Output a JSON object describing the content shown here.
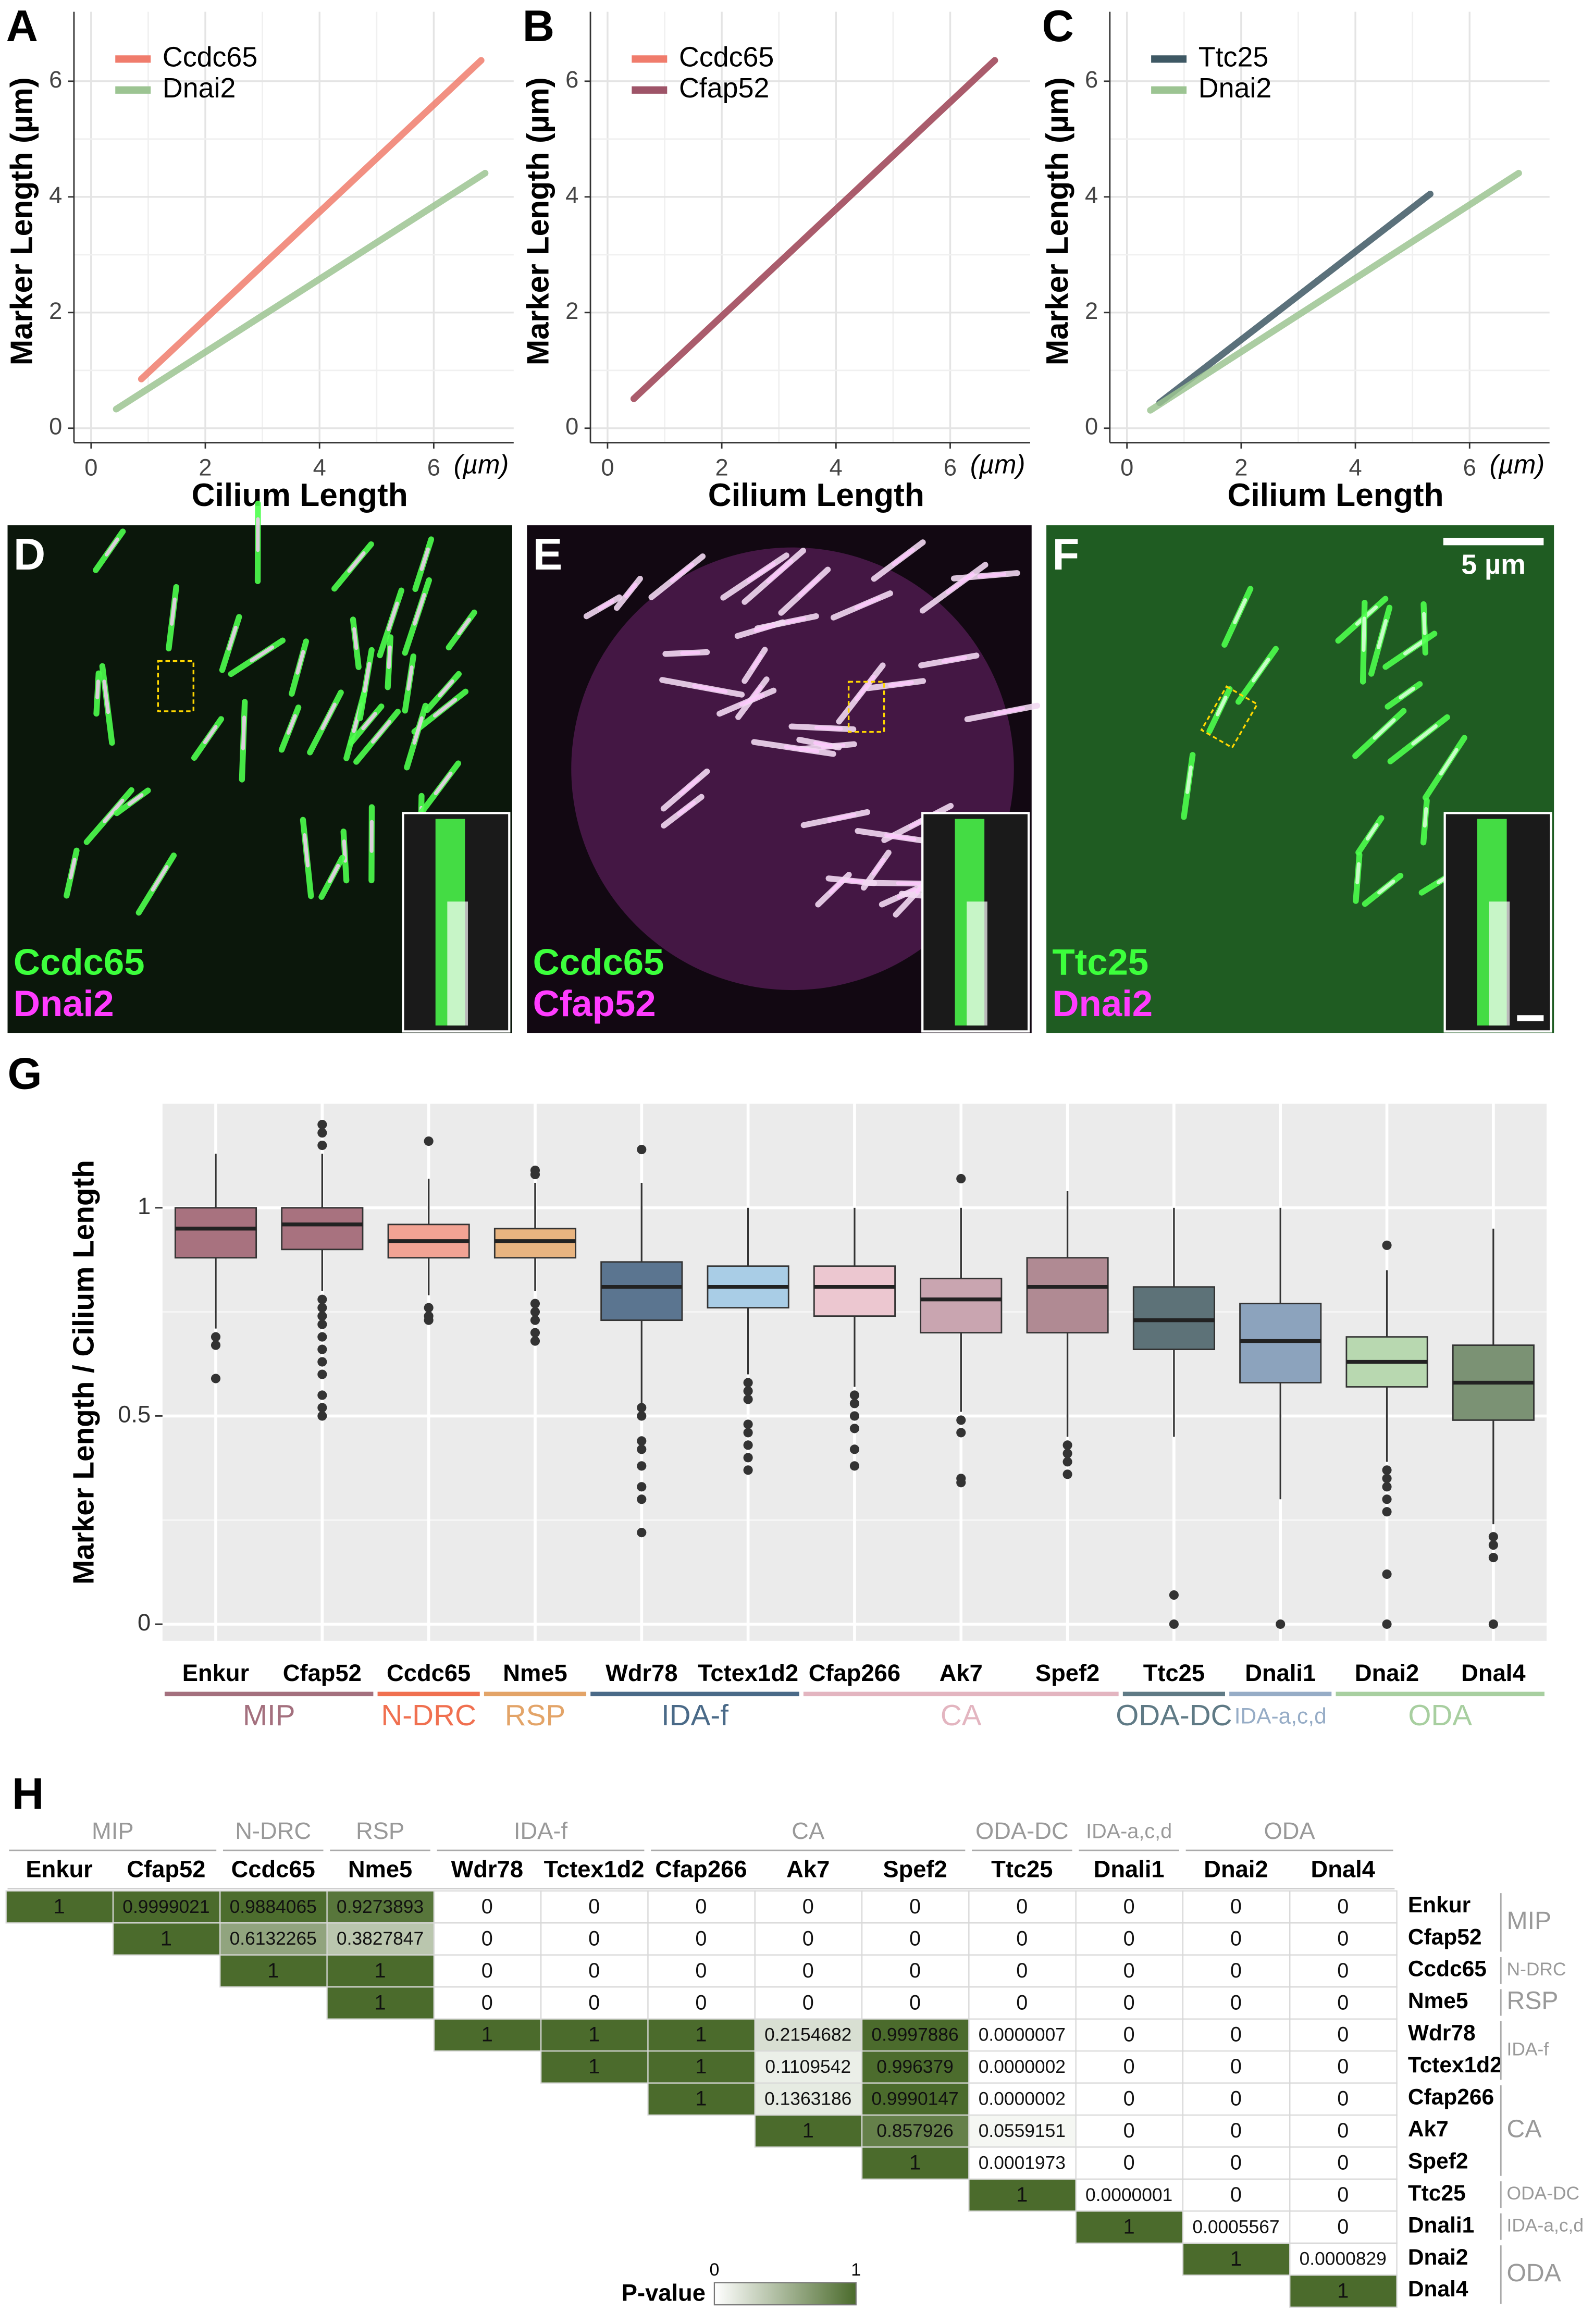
{
  "chart_data": [
    {
      "type": "line",
      "label": "A",
      "xlabel": "Cilium Length",
      "unit": "(µm)",
      "ylabel": "Marker Length (µm)",
      "xlim": [
        -0.3,
        7.4
      ],
      "ylim": [
        -0.25,
        7.2
      ],
      "xticks": [
        0,
        2,
        4,
        6
      ],
      "yticks": [
        0,
        2,
        4,
        6
      ],
      "grid": true,
      "legend": "top-left",
      "series": [
        {
          "name": "Ccdc65",
          "color": "#f07c6c",
          "x": [
            0.88,
            6.83
          ],
          "values": [
            0.85,
            6.36
          ]
        },
        {
          "name": "Dnai2",
          "color": "#9cc492",
          "x": [
            0.44,
            6.9
          ],
          "values": [
            0.33,
            4.41
          ]
        }
      ]
    },
    {
      "type": "line",
      "label": "B",
      "xlabel": "Cilium Length",
      "unit": "(µm)",
      "ylabel": "Marker Length (µm)",
      "xlim": [
        -0.3,
        7.4
      ],
      "ylim": [
        -0.25,
        7.2
      ],
      "xticks": [
        0,
        2,
        4,
        6
      ],
      "yticks": [
        0,
        2,
        4,
        6
      ],
      "grid": true,
      "legend": "top-left",
      "series": [
        {
          "name": "Ccdc65",
          "color": "#f07c6c",
          "x": [
            0.46,
            6.78
          ],
          "values": [
            0.51,
            6.36
          ]
        },
        {
          "name": "Cfap52",
          "color": "#9e5468",
          "x": [
            0.46,
            6.78
          ],
          "values": [
            0.51,
            6.36
          ]
        }
      ]
    },
    {
      "type": "line",
      "label": "C",
      "xlabel": "Cilium Length",
      "unit": "(µm)",
      "ylabel": "Marker Length (µm)",
      "xlim": [
        -0.3,
        7.4
      ],
      "ylim": [
        -0.25,
        7.2
      ],
      "xticks": [
        0,
        2,
        4,
        6
      ],
      "yticks": [
        0,
        2,
        4,
        6
      ],
      "grid": true,
      "legend": "top-left",
      "series": [
        {
          "name": "Ttc25",
          "color": "#3e5864",
          "x": [
            0.57,
            5.31
          ],
          "values": [
            0.44,
            4.05
          ]
        },
        {
          "name": "Dnai2",
          "color": "#9cc492",
          "x": [
            0.41,
            6.86
          ],
          "values": [
            0.31,
            4.41
          ]
        }
      ]
    },
    {
      "type": "box",
      "label": "G",
      "ylabel": "Marker Length / Cilium Length",
      "categories": [
        "Enkur",
        "Cfap52",
        "Ccdc65",
        "Nme5",
        "Wdr78",
        "Tctex1d2",
        "Cfap266",
        "Ak7",
        "Spef2",
        "Ttc25",
        "Dnali1",
        "Dnai2",
        "Dnal4"
      ],
      "groups": [
        "MIP",
        "MIP",
        "N-DRC",
        "RSP",
        "IDA-f",
        "IDA-f",
        "CA",
        "CA",
        "CA",
        "ODA-DC",
        "IDA-a,c,d",
        "ODA",
        "ODA"
      ],
      "group_colors": [
        "#a4707e",
        "#a4707e",
        "#f07050",
        "#e3a468",
        "#4a6a88",
        "#4a6a88",
        "#e3b5c0",
        "#e3b5c0",
        "#e3b5c0",
        "#5f7a85",
        "#96acc6",
        "#a8cfa0",
        "#a8cfa0"
      ],
      "colors": [
        "#a8727f",
        "#a8727f",
        "#f2a394",
        "#e8b480",
        "#5b7590",
        "#a9cde6",
        "#ecc7d0",
        "#c9a5b0",
        "#b08a93",
        "#5d7278",
        "#8ca3bd",
        "#b8d8b0",
        "#7b9274"
      ],
      "ylim": [
        -0.04,
        1.25
      ],
      "yticks": [
        0,
        0.5,
        1
      ],
      "grid": true,
      "median": [
        0.95,
        0.96,
        0.92,
        0.92,
        0.81,
        0.81,
        0.81,
        0.78,
        0.81,
        0.73,
        0.68,
        0.63,
        0.58
      ],
      "q1": [
        0.88,
        0.9,
        0.88,
        0.88,
        0.73,
        0.76,
        0.74,
        0.7,
        0.7,
        0.66,
        0.58,
        0.57,
        0.49
      ],
      "q3": [
        1.0,
        1.0,
        0.96,
        0.95,
        0.87,
        0.86,
        0.86,
        0.83,
        0.88,
        0.81,
        0.77,
        0.69,
        0.67
      ],
      "whisker_low": [
        0.71,
        0.8,
        0.79,
        0.8,
        0.53,
        0.6,
        0.57,
        0.51,
        0.45,
        0.45,
        0.3,
        0.39,
        0.24
      ],
      "whisker_high": [
        1.13,
        1.13,
        1.07,
        1.06,
        1.06,
        1.0,
        1.0,
        1.0,
        1.04,
        1.0,
        1.0,
        0.85,
        0.95
      ],
      "outliers": [
        [
          0.69,
          0.67,
          0.59
        ],
        [
          1.2,
          1.18,
          1.15,
          0.78,
          0.76,
          0.74,
          0.72,
          0.69,
          0.66,
          0.63,
          0.6,
          0.55,
          0.52,
          0.5
        ],
        [
          1.16,
          0.76,
          0.74,
          0.73
        ],
        [
          1.09,
          1.08,
          0.77,
          0.75,
          0.73,
          0.7,
          0.68
        ],
        [
          1.14,
          0.52,
          0.5,
          0.44,
          0.42,
          0.38,
          0.33,
          0.3,
          0.22
        ],
        [
          0.58,
          0.56,
          0.54,
          0.48,
          0.46,
          0.43,
          0.4,
          0.37
        ],
        [
          0.55,
          0.53,
          0.5,
          0.47,
          0.42,
          0.38
        ],
        [
          1.07,
          0.49,
          0.46,
          0.35,
          0.34
        ],
        [
          0.43,
          0.41,
          0.39,
          0.36
        ],
        [
          0.07,
          0.0
        ],
        [
          0.0
        ],
        [
          0.91,
          0.37,
          0.35,
          0.33,
          0.3,
          0.27,
          0.12,
          0.0
        ],
        [
          0.21,
          0.19,
          0.16,
          0.0
        ]
      ]
    }
  ],
  "images": [
    {
      "label": "D",
      "stains": [
        {
          "name": "Ccdc65",
          "color": "#3cff3c"
        },
        {
          "name": "Dnai2",
          "color": "#ff3cff"
        }
      ]
    },
    {
      "label": "E",
      "stains": [
        {
          "name": "Ccdc65",
          "color": "#3cff3c"
        },
        {
          "name": "Cfap52",
          "color": "#ff3cff"
        }
      ]
    },
    {
      "label": "F",
      "stains": [
        {
          "name": "Ttc25",
          "color": "#3cff3c"
        },
        {
          "name": "Dnai2",
          "color": "#ff3cff"
        }
      ]
    }
  ],
  "scale_bar": "5 µm",
  "table": {
    "label": "H",
    "columns": [
      "Enkur",
      "Cfap52",
      "Ccdc65",
      "Nme5",
      "Wdr78",
      "Tctex1d2",
      "Cfap266",
      "Ak7",
      "Spef2",
      "Ttc25",
      "Dnali1",
      "Dnai2",
      "Dnal4"
    ],
    "column_groups": [
      "MIP",
      "MIP",
      "N-DRC",
      "RSP",
      "IDA-f",
      "IDA-f",
      "CA",
      "CA",
      "CA",
      "ODA-DC",
      "IDA-a,c,d",
      "ODA",
      "ODA"
    ],
    "rows": [
      "Enkur",
      "Cfap52",
      "Ccdc65",
      "Nme5",
      "Wdr78",
      "Tctex1d2",
      "Cfap266",
      "Ak7",
      "Spef2",
      "Ttc25",
      "Dnali1",
      "Dnai2",
      "Dnal4"
    ],
    "row_groups": [
      "MIP",
      "MIP",
      "N-DRC",
      "RSP",
      "IDA-f",
      "IDA-f",
      "CA",
      "CA",
      "CA",
      "ODA-DC",
      "IDA-a,c,d",
      "ODA",
      "ODA"
    ],
    "cells": [
      [
        "1",
        "0.9999021",
        "0.9884065",
        "0.9273893",
        "0",
        "0",
        "0",
        "0",
        "0",
        "0",
        "0",
        "0",
        "0"
      ],
      [
        null,
        "1",
        "0.6132265",
        "0.3827847",
        "0",
        "0",
        "0",
        "0",
        "0",
        "0",
        "0",
        "0",
        "0"
      ],
      [
        null,
        null,
        "1",
        "1",
        "0",
        "0",
        "0",
        "0",
        "0",
        "0",
        "0",
        "0",
        "0"
      ],
      [
        null,
        null,
        null,
        "1",
        "0",
        "0",
        "0",
        "0",
        "0",
        "0",
        "0",
        "0",
        "0"
      ],
      [
        null,
        null,
        null,
        null,
        "1",
        "1",
        "1",
        "0.2154682",
        "0.9997886",
        "0.0000007",
        "0",
        "0",
        "0"
      ],
      [
        null,
        null,
        null,
        null,
        null,
        "1",
        "1",
        "0.1109542",
        "0.996379",
        "0.0000002",
        "0",
        "0",
        "0"
      ],
      [
        null,
        null,
        null,
        null,
        null,
        null,
        "1",
        "0.1363186",
        "0.9990147",
        "0.0000002",
        "0",
        "0",
        "0"
      ],
      [
        null,
        null,
        null,
        null,
        null,
        null,
        null,
        "1",
        "0.857926",
        "0.0559151",
        "0",
        "0",
        "0"
      ],
      [
        null,
        null,
        null,
        null,
        null,
        null,
        null,
        null,
        "1",
        "0.0001973",
        "0",
        "0",
        "0"
      ],
      [
        null,
        null,
        null,
        null,
        null,
        null,
        null,
        null,
        null,
        "1",
        "0.0000001",
        "0",
        "0"
      ],
      [
        null,
        null,
        null,
        null,
        null,
        null,
        null,
        null,
        null,
        null,
        "1",
        "0.0005567",
        "0"
      ],
      [
        null,
        null,
        null,
        null,
        null,
        null,
        null,
        null,
        null,
        null,
        null,
        "1",
        "0.0000829"
      ],
      [
        null,
        null,
        null,
        null,
        null,
        null,
        null,
        null,
        null,
        null,
        null,
        null,
        "1"
      ]
    ],
    "legend": {
      "title": "P-value",
      "min": 0,
      "max": 1,
      "color": "#4b6b2c"
    }
  }
}
